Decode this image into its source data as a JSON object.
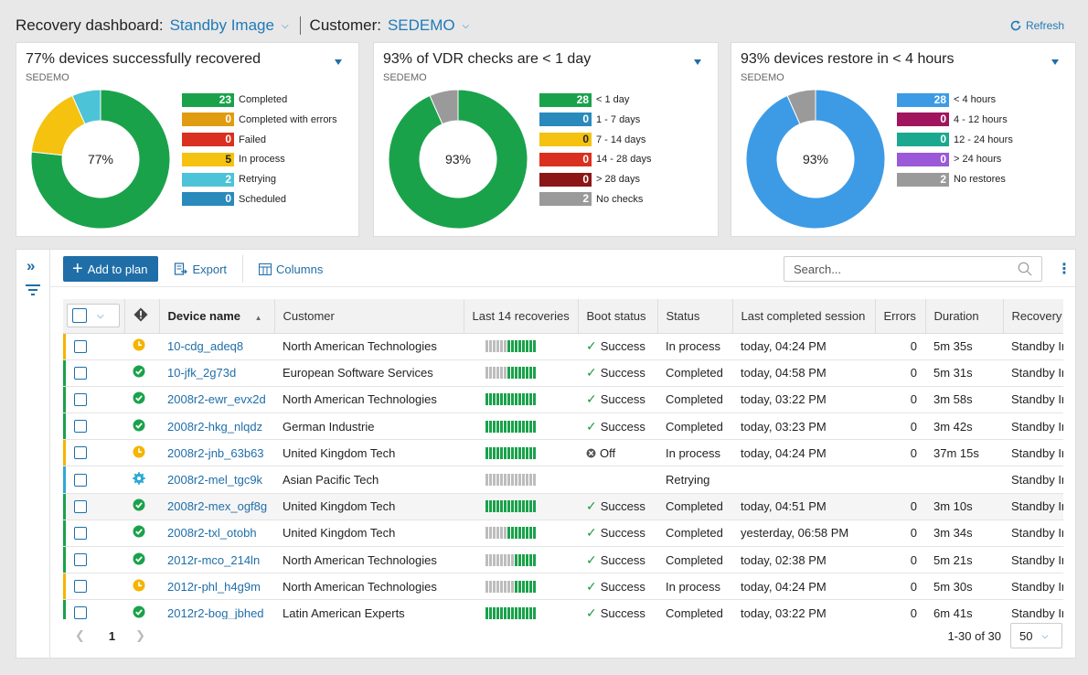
{
  "header": {
    "dashboard_label": "Recovery dashboard:",
    "dashboard_value": "Standby Image",
    "customer_label": "Customer:",
    "customer_value": "SEDEMO",
    "refresh_label": "Refresh"
  },
  "cards": [
    {
      "title": "77% devices successfully recovered",
      "subtitle": "SEDEMO",
      "center": "77%",
      "legend": [
        {
          "value": "23",
          "label": "Completed",
          "color": "#1aa24b"
        },
        {
          "value": "0",
          "label": "Completed with errors",
          "color": "#e09c10"
        },
        {
          "value": "0",
          "label": "Failed",
          "color": "#d9301f"
        },
        {
          "value": "5",
          "label": "In process",
          "color": "#f4c20f"
        },
        {
          "value": "2",
          "label": "Retrying",
          "color": "#4cc3d6"
        },
        {
          "value": "0",
          "label": "Scheduled",
          "color": "#2a8abc"
        }
      ],
      "chart_data": {
        "type": "pie",
        "labels": [
          "Completed",
          "In process",
          "Retrying"
        ],
        "values": [
          23,
          5,
          2
        ],
        "colors": [
          "#1aa24b",
          "#f4c20f",
          "#4cc3d6"
        ]
      }
    },
    {
      "title": "93% of VDR checks are < 1 day",
      "subtitle": "SEDEMO",
      "center": "93%",
      "legend": [
        {
          "value": "28",
          "label": "< 1 day",
          "color": "#1aa24b"
        },
        {
          "value": "0",
          "label": "1 - 7 days",
          "color": "#2a8abc"
        },
        {
          "value": "0",
          "label": "7 - 14 days",
          "color": "#f4c20f"
        },
        {
          "value": "0",
          "label": "14 - 28 days",
          "color": "#d9301f"
        },
        {
          "value": "0",
          "label": "> 28 days",
          "color": "#8a1616"
        },
        {
          "value": "2",
          "label": "No checks",
          "color": "#9a9a9a"
        }
      ],
      "chart_data": {
        "type": "pie",
        "labels": [
          "< 1 day",
          "No checks"
        ],
        "values": [
          28,
          2
        ],
        "colors": [
          "#1aa24b",
          "#9a9a9a"
        ]
      }
    },
    {
      "title": "93% devices restore in < 4 hours",
      "subtitle": "SEDEMO",
      "center": "93%",
      "legend": [
        {
          "value": "28",
          "label": "< 4 hours",
          "color": "#3d9be6"
        },
        {
          "value": "0",
          "label": "4 - 12 hours",
          "color": "#a0155d"
        },
        {
          "value": "0",
          "label": "12 - 24 hours",
          "color": "#1aa98e"
        },
        {
          "value": "0",
          "label": "> 24 hours",
          "color": "#9b58d8"
        },
        {
          "value": "2",
          "label": "No restores",
          "color": "#9a9a9a"
        }
      ],
      "chart_data": {
        "type": "pie",
        "labels": [
          "< 4 hours",
          "No restores"
        ],
        "values": [
          28,
          2
        ],
        "colors": [
          "#3d9be6",
          "#9a9a9a"
        ]
      }
    }
  ],
  "toolbar": {
    "add_label": "Add to plan",
    "export_label": "Export",
    "columns_label": "Columns",
    "search_placeholder": "Search..."
  },
  "table": {
    "columns": [
      "Device name",
      "Customer",
      "Last 14 recoveries",
      "Boot status",
      "Status",
      "Last completed session",
      "Errors",
      "Duration",
      "Recovery"
    ],
    "rows": [
      {
        "state": "inprocess",
        "name": "10-cdg_adeq8",
        "customer": "North American Technologies",
        "greens": 8,
        "boot": "Success",
        "status": "In process",
        "session": "today, 04:24 PM",
        "errors": "0",
        "duration": "5m 35s",
        "recovery": "Standby Image"
      },
      {
        "state": "ok",
        "name": "10-jfk_2g73d",
        "customer": "European Software Services",
        "greens": 8,
        "boot": "Success",
        "status": "Completed",
        "session": "today, 04:58 PM",
        "errors": "0",
        "duration": "5m 31s",
        "recovery": "Standby Image"
      },
      {
        "state": "ok",
        "name": "2008r2-ewr_evx2d",
        "customer": "North American Technologies",
        "greens": 14,
        "boot": "Success",
        "status": "Completed",
        "session": "today, 03:22 PM",
        "errors": "0",
        "duration": "3m 58s",
        "recovery": "Standby Image"
      },
      {
        "state": "ok",
        "name": "2008r2-hkg_nlqdz",
        "customer": "German Industrie",
        "greens": 14,
        "boot": "Success",
        "status": "Completed",
        "session": "today, 03:23 PM",
        "errors": "0",
        "duration": "3m 42s",
        "recovery": "Standby Image"
      },
      {
        "state": "inprocess",
        "name": "2008r2-jnb_63b63",
        "customer": "United Kingdom Tech",
        "greens": 14,
        "boot": "Off",
        "status": "In process",
        "session": "today, 04:24 PM",
        "errors": "0",
        "duration": "37m 15s",
        "recovery": "Standby Image"
      },
      {
        "state": "retry",
        "name": "2008r2-mel_tgc9k",
        "customer": "Asian Pacific Tech",
        "greens": 0,
        "boot": "",
        "status": "Retrying",
        "session": "",
        "errors": "",
        "duration": "",
        "recovery": "Standby Image"
      },
      {
        "state": "ok",
        "name": "2008r2-mex_ogf8g",
        "customer": "United Kingdom Tech",
        "greens": 14,
        "boot": "Success",
        "status": "Completed",
        "session": "today, 04:51 PM",
        "errors": "0",
        "duration": "3m 10s",
        "recovery": "Standby Image"
      },
      {
        "state": "ok",
        "name": "2008r2-txl_otobh",
        "customer": "United Kingdom Tech",
        "greens": 8,
        "boot": "Success",
        "status": "Completed",
        "session": "yesterday, 06:58 PM",
        "errors": "0",
        "duration": "3m 34s",
        "recovery": "Standby Image"
      },
      {
        "state": "ok",
        "name": "2012r-mco_214ln",
        "customer": "North American Technologies",
        "greens": 6,
        "boot": "Success",
        "status": "Completed",
        "session": "today, 02:38 PM",
        "errors": "0",
        "duration": "5m 21s",
        "recovery": "Standby Image"
      },
      {
        "state": "inprocess",
        "name": "2012r-phl_h4g9m",
        "customer": "North American Technologies",
        "greens": 6,
        "boot": "Success",
        "status": "In process",
        "session": "today, 04:24 PM",
        "errors": "0",
        "duration": "5m 30s",
        "recovery": "Standby Image"
      },
      {
        "state": "ok",
        "name": "2012r2-bog_jbhed",
        "customer": "Latin American Experts",
        "greens": 14,
        "boot": "Success",
        "status": "Completed",
        "session": "today, 03:22 PM",
        "errors": "0",
        "duration": "6m 41s",
        "recovery": "Standby Image"
      }
    ]
  },
  "pager": {
    "page": "1",
    "count": "1-30 of 30",
    "page_size": "50"
  },
  "colors": {
    "accent": "#1f6ea8",
    "success": "#1aa24b",
    "inprocess": "#f4b400",
    "retry": "#2fa8d4",
    "spark_gray": "#bdbdbd"
  }
}
